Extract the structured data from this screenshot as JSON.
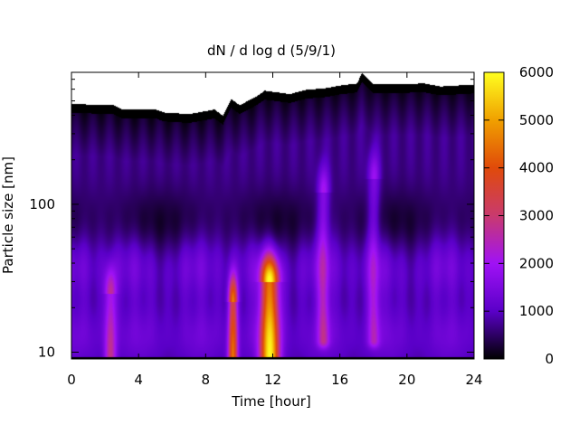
{
  "chart_data": {
    "type": "heatmap",
    "title": "dN / d log d (5/9/1)",
    "xlabel": "Time [hour]",
    "ylabel": "Particle size [nm]",
    "xlim": [
      0,
      24
    ],
    "ylim": [
      9,
      780
    ],
    "yscale": "log",
    "xticks": [
      0,
      4,
      8,
      12,
      16,
      20,
      24
    ],
    "yticks": [
      10,
      100
    ],
    "colorbar": {
      "range": [
        0,
        6000
      ],
      "ticks": [
        0,
        1000,
        2000,
        3000,
        4000,
        5000,
        6000
      ],
      "colormap": "gnuplot (black-purple-red-orange-yellow)",
      "stops": [
        "#000000",
        "#5a00c8",
        "#a012f5",
        "#c93a6e",
        "#e04a0a",
        "#f0a000",
        "#ffff20"
      ]
    },
    "no_data_color": "#ffffff",
    "upper_edge_color": "#000000",
    "upper_edge_nm": [
      [
        0,
        480
      ],
      [
        2.5,
        470
      ],
      [
        3,
        440
      ],
      [
        5,
        440
      ],
      [
        5.5,
        420
      ],
      [
        7,
        410
      ],
      [
        8.5,
        440
      ],
      [
        9,
        400
      ],
      [
        9.5,
        520
      ],
      [
        10,
        470
      ],
      [
        11,
        540
      ],
      [
        11.5,
        590
      ],
      [
        13,
        560
      ],
      [
        14,
        600
      ],
      [
        15,
        610
      ],
      [
        16,
        640
      ],
      [
        17,
        660
      ],
      [
        17.3,
        780
      ],
      [
        18,
        650
      ],
      [
        21,
        660
      ],
      [
        22,
        630
      ],
      [
        24,
        650
      ]
    ],
    "features": [
      {
        "kind": "background_band",
        "x_range": [
          0,
          24
        ],
        "y_range_nm": [
          9.3,
          400
        ],
        "value": 700
      },
      {
        "kind": "band",
        "x_range": [
          0,
          24
        ],
        "y_center_nm": 40,
        "value": 1800
      },
      {
        "kind": "band",
        "x_range": [
          0,
          24
        ],
        "y_center_nm": 13,
        "value": 1600
      },
      {
        "kind": "streak",
        "x": 2.3,
        "y_range_nm": [
          9.5,
          25
        ],
        "value": 2600
      },
      {
        "kind": "burst",
        "x": 9.6,
        "y_range_nm": [
          9.5,
          22
        ],
        "value": 4300
      },
      {
        "kind": "burst",
        "x": 11.8,
        "y_range_nm": [
          9.5,
          30
        ],
        "value": 5600
      },
      {
        "kind": "streak",
        "x": 15.0,
        "y_range_nm": [
          12,
          120
        ],
        "value": 2200
      },
      {
        "kind": "streak",
        "x": 18.0,
        "y_range_nm": [
          12,
          150
        ],
        "value": 2000
      }
    ]
  }
}
